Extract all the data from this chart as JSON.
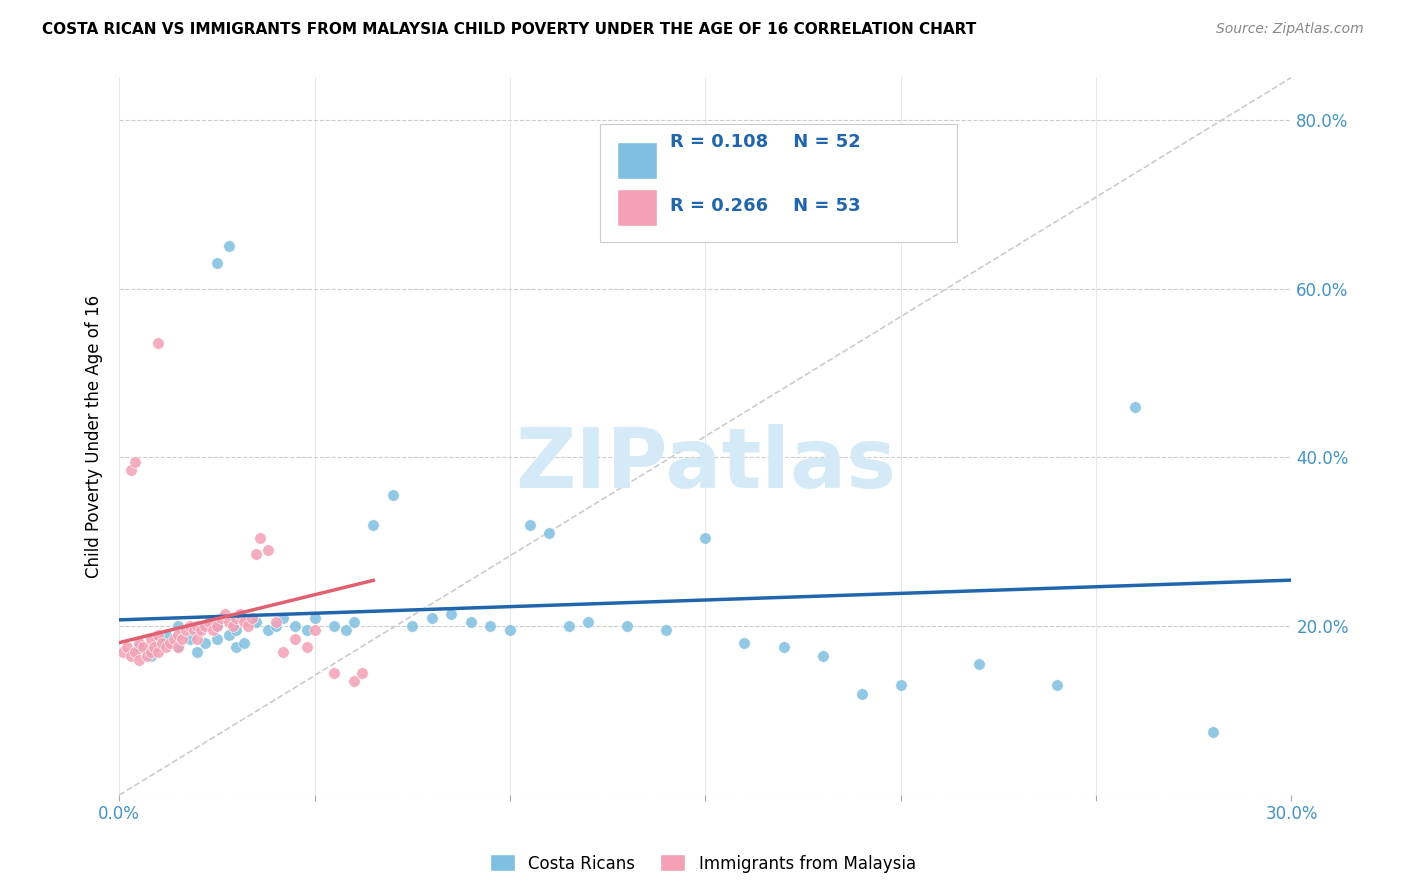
{
  "title": "COSTA RICAN VS IMMIGRANTS FROM MALAYSIA CHILD POVERTY UNDER THE AGE OF 16 CORRELATION CHART",
  "source": "Source: ZipAtlas.com",
  "ylabel": "Child Poverty Under the Age of 16",
  "xlim": [
    0.0,
    0.3
  ],
  "ylim": [
    0.0,
    0.85
  ],
  "xticks": [
    0.0,
    0.05,
    0.1,
    0.15,
    0.2,
    0.25,
    0.3
  ],
  "yticks_right": [
    0.0,
    0.2,
    0.4,
    0.6,
    0.8
  ],
  "ytick_labels_right": [
    "",
    "20.0%",
    "40.0%",
    "60.0%",
    "80.0%"
  ],
  "xtick_labels": [
    "0.0%",
    "",
    "",
    "",
    "",
    "",
    "30.0%"
  ],
  "blue_color": "#7fbfdf",
  "pink_color": "#f4a0b5",
  "blue_line_color": "#2166ac",
  "pink_line_color": "#e06070",
  "axis_color": "#4393c3",
  "watermark_text": "ZIPatlas",
  "watermark_color": "#d5eaf7",
  "legend_R_blue": "R = 0.108",
  "legend_N_blue": "N = 52",
  "legend_R_pink": "R = 0.266",
  "legend_N_pink": "N = 53",
  "legend_label_blue": "Costa Ricans",
  "legend_label_pink": "Immigrants from Malaysia",
  "blue_x": [
    0.005,
    0.008,
    0.01,
    0.012,
    0.015,
    0.015,
    0.018,
    0.02,
    0.02,
    0.022,
    0.025,
    0.025,
    0.028,
    0.03,
    0.03,
    0.032,
    0.035,
    0.038,
    0.04,
    0.042,
    0.045,
    0.048,
    0.05,
    0.055,
    0.058,
    0.06,
    0.065,
    0.07,
    0.075,
    0.08,
    0.085,
    0.09,
    0.095,
    0.1,
    0.105,
    0.11,
    0.115,
    0.12,
    0.13,
    0.14,
    0.15,
    0.16,
    0.17,
    0.18,
    0.19,
    0.2,
    0.22,
    0.24,
    0.26,
    0.28,
    0.025,
    0.028
  ],
  "blue_y": [
    0.175,
    0.165,
    0.18,
    0.19,
    0.2,
    0.175,
    0.185,
    0.195,
    0.17,
    0.18,
    0.2,
    0.185,
    0.19,
    0.175,
    0.195,
    0.18,
    0.205,
    0.195,
    0.2,
    0.21,
    0.2,
    0.195,
    0.21,
    0.2,
    0.195,
    0.205,
    0.32,
    0.355,
    0.2,
    0.21,
    0.215,
    0.205,
    0.2,
    0.195,
    0.32,
    0.31,
    0.2,
    0.205,
    0.2,
    0.195,
    0.305,
    0.18,
    0.175,
    0.165,
    0.12,
    0.13,
    0.155,
    0.13,
    0.46,
    0.075,
    0.63,
    0.65
  ],
  "pink_x": [
    0.001,
    0.002,
    0.003,
    0.004,
    0.005,
    0.005,
    0.006,
    0.007,
    0.008,
    0.008,
    0.009,
    0.01,
    0.01,
    0.011,
    0.012,
    0.013,
    0.014,
    0.015,
    0.015,
    0.016,
    0.017,
    0.018,
    0.019,
    0.02,
    0.02,
    0.021,
    0.022,
    0.023,
    0.024,
    0.025,
    0.026,
    0.027,
    0.028,
    0.029,
    0.03,
    0.031,
    0.032,
    0.033,
    0.034,
    0.035,
    0.036,
    0.038,
    0.04,
    0.042,
    0.045,
    0.048,
    0.05,
    0.055,
    0.06,
    0.062,
    0.003,
    0.004,
    0.01
  ],
  "pink_y": [
    0.17,
    0.175,
    0.165,
    0.17,
    0.16,
    0.18,
    0.175,
    0.165,
    0.17,
    0.185,
    0.175,
    0.17,
    0.19,
    0.18,
    0.175,
    0.18,
    0.185,
    0.19,
    0.175,
    0.185,
    0.195,
    0.2,
    0.195,
    0.2,
    0.185,
    0.195,
    0.2,
    0.205,
    0.195,
    0.2,
    0.21,
    0.215,
    0.205,
    0.2,
    0.21,
    0.215,
    0.205,
    0.2,
    0.21,
    0.285,
    0.305,
    0.29,
    0.205,
    0.17,
    0.185,
    0.175,
    0.195,
    0.145,
    0.135,
    0.145,
    0.385,
    0.395,
    0.535
  ]
}
